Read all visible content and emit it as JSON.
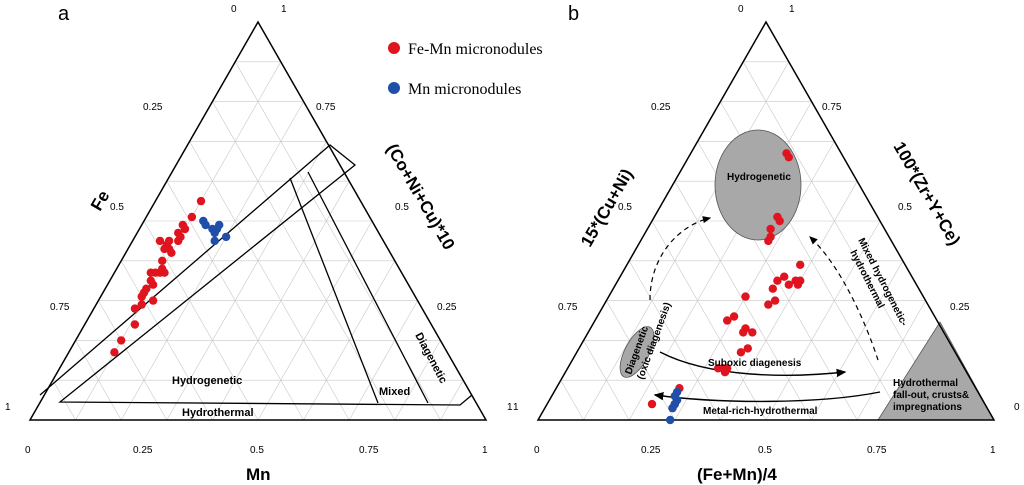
{
  "legend": {
    "fe_mn": {
      "label": "Fe-Mn micronodules",
      "color": "#e0141e"
    },
    "mn": {
      "label": "Mn micronodules",
      "color": "#1f4fa8"
    }
  },
  "chart_data": [
    {
      "type": "scatter",
      "panel": "a",
      "subtype": "ternary",
      "apices": {
        "top": "Fe",
        "right": "(Co+Ni+Cu)*10",
        "left": "Mn"
      },
      "axis_labels": {
        "left_side": "Fe",
        "right_side": "(Co+Ni+Cu)*10",
        "bottom": "Mn"
      },
      "tick_labels": {
        "bottom": [
          "0",
          "0.25",
          "0.5",
          "0.75",
          "1"
        ],
        "left_side": [
          "0.25",
          "0.5",
          "0.75"
        ],
        "right_side": [
          "0.75",
          "0.5",
          "0.25"
        ],
        "corners": {
          "top_left": "0",
          "top_right": "1",
          "left": "1",
          "right": "1"
        }
      },
      "fields": [
        "Hydrogenetic",
        "Hydrothermal",
        "Mixed",
        "Diagenetic"
      ],
      "series": [
        {
          "name": "Fe-Mn micronodules",
          "points_fe_mn_conicu": [
            [
              0.55,
              0.35,
              0.1
            ],
            [
              0.51,
              0.39,
              0.1
            ],
            [
              0.49,
              0.42,
              0.09
            ],
            [
              0.48,
              0.42,
              0.1
            ],
            [
              0.47,
              0.44,
              0.09
            ],
            [
              0.46,
              0.44,
              0.1
            ],
            [
              0.45,
              0.45,
              0.1
            ],
            [
              0.44,
              0.48,
              0.08
            ],
            [
              0.45,
              0.47,
              0.08
            ],
            [
              0.43,
              0.49,
              0.08
            ],
            [
              0.42,
              0.48,
              0.1
            ],
            [
              0.45,
              0.49,
              0.06
            ],
            [
              0.43,
              0.48,
              0.09
            ],
            [
              0.4,
              0.51,
              0.09
            ],
            [
              0.38,
              0.52,
              0.1
            ],
            [
              0.37,
              0.55,
              0.08
            ],
            [
              0.37,
              0.54,
              0.09
            ],
            [
              0.37,
              0.53,
              0.1
            ],
            [
              0.37,
              0.52,
              0.11
            ],
            [
              0.35,
              0.56,
              0.09
            ],
            [
              0.34,
              0.56,
              0.1
            ],
            [
              0.33,
              0.58,
              0.09
            ],
            [
              0.32,
              0.59,
              0.09
            ],
            [
              0.31,
              0.6,
              0.09
            ],
            [
              0.3,
              0.58,
              0.12
            ],
            [
              0.29,
              0.61,
              0.1
            ],
            [
              0.28,
              0.63,
              0.09
            ],
            [
              0.24,
              0.65,
              0.11
            ],
            [
              0.2,
              0.7,
              0.1
            ],
            [
              0.17,
              0.73,
              0.1
            ]
          ]
        },
        {
          "name": "Mn micronodules",
          "points_fe_mn_conicu": [
            [
              0.5,
              0.37,
              0.13
            ],
            [
              0.49,
              0.37,
              0.14
            ],
            [
              0.48,
              0.36,
              0.16
            ],
            [
              0.47,
              0.36,
              0.17
            ],
            [
              0.48,
              0.35,
              0.17
            ],
            [
              0.49,
              0.34,
              0.17
            ],
            [
              0.46,
              0.34,
              0.2
            ],
            [
              0.45,
              0.37,
              0.18
            ]
          ]
        }
      ]
    },
    {
      "type": "scatter",
      "panel": "b",
      "subtype": "ternary",
      "apices": {
        "top": "15*(Cu+Ni)",
        "right": "100*(Zr+Y+Ce)",
        "left": "(Fe+Mn)/4"
      },
      "axis_labels": {
        "left_side": "15*(Cu+Ni)",
        "right_side": "100*(Zr+Y+Ce)",
        "bottom": "(Fe+Mn)/4"
      },
      "tick_labels": {
        "bottom": [
          "0",
          "0.25",
          "0.5",
          "0.75",
          "1"
        ],
        "left_side": [
          "0.25",
          "0.5",
          "0.75"
        ],
        "right_side": [
          "0.75",
          "0.5",
          "0.25"
        ],
        "corners": {
          "top_left": "0",
          "top_right": "1",
          "left": "1",
          "right": "0"
        }
      },
      "fields": [
        "Hydrogenetic",
        "Diagenetic (oxic diagenesis)",
        "Hydrothermal fall-out, crusts& impregnations"
      ],
      "annotations": [
        "Suboxic diagenesis",
        "Metal-rich-hydrothermal",
        "Mixed hydrogenetic-hydrothermal"
      ],
      "series": [
        {
          "name": "Fe-Mn micronodules",
          "points_cuni_zryce_femn": [
            [
              0.67,
              0.21,
              0.12
            ],
            [
              0.66,
              0.22,
              0.12
            ],
            [
              0.5,
              0.28,
              0.22
            ],
            [
              0.51,
              0.27,
              0.22
            ],
            [
              0.46,
              0.28,
              0.26
            ],
            [
              0.48,
              0.27,
              0.25
            ],
            [
              0.45,
              0.28,
              0.27
            ],
            [
              0.39,
              0.38,
              0.23
            ],
            [
              0.35,
              0.39,
              0.26
            ],
            [
              0.36,
              0.36,
              0.28
            ],
            [
              0.35,
              0.4,
              0.25
            ],
            [
              0.34,
              0.4,
              0.26
            ],
            [
              0.35,
              0.35,
              0.3
            ],
            [
              0.34,
              0.38,
              0.28
            ],
            [
              0.33,
              0.35,
              0.32
            ],
            [
              0.3,
              0.37,
              0.33
            ],
            [
              0.29,
              0.36,
              0.35
            ],
            [
              0.31,
              0.3,
              0.39
            ],
            [
              0.26,
              0.3,
              0.44
            ],
            [
              0.25,
              0.29,
              0.46
            ],
            [
              0.23,
              0.34,
              0.43
            ],
            [
              0.22,
              0.34,
              0.44
            ],
            [
              0.22,
              0.36,
              0.42
            ],
            [
              0.18,
              0.37,
              0.45
            ],
            [
              0.17,
              0.36,
              0.47
            ],
            [
              0.12,
              0.35,
              0.53
            ],
            [
              0.13,
              0.35,
              0.52
            ],
            [
              0.13,
              0.33,
              0.54
            ],
            [
              0.13,
              0.34,
              0.53
            ],
            [
              0.08,
              0.27,
              0.65
            ],
            [
              0.04,
              0.23,
              0.73
            ],
            [
              0.04,
              0.28,
              0.68
            ],
            [
              0.03,
              0.28,
              0.69
            ]
          ]
        },
        {
          "name": "Mn micronodules",
          "points_cuni_zryce_femn": [
            [
              0.07,
              0.27,
              0.66
            ],
            [
              0.06,
              0.27,
              0.67
            ],
            [
              0.05,
              0.28,
              0.67
            ],
            [
              0.04,
              0.28,
              0.68
            ],
            [
              0.03,
              0.28,
              0.69
            ],
            [
              0.0,
              0.29,
              0.71
            ]
          ]
        }
      ]
    }
  ],
  "panel_labels": {
    "a": "a",
    "b": "b"
  },
  "fields_text": {
    "a_hydrogenetic": "Hydrogenetic",
    "a_hydrothermal": "Hydrothermal",
    "a_mixed": "Mixed",
    "a_diagenetic": "Diagenetic",
    "b_hydrogenetic": "Hydrogenetic",
    "b_diagenetic_1": "Diagenetic",
    "b_diagenetic_2": "(oxic diagenesis)",
    "b_hydrothermal_1": "Hydrothermal",
    "b_hydrothermal_2": "fall-out, crusts&",
    "b_hydrothermal_3": "impregnations",
    "b_suboxic": "Suboxic diagenesis",
    "b_metalrich": "Metal-rich-hydrothermal",
    "b_mixed_1": "Mixed hydrogenetic-",
    "b_mixed_2": "hydrothermal"
  }
}
